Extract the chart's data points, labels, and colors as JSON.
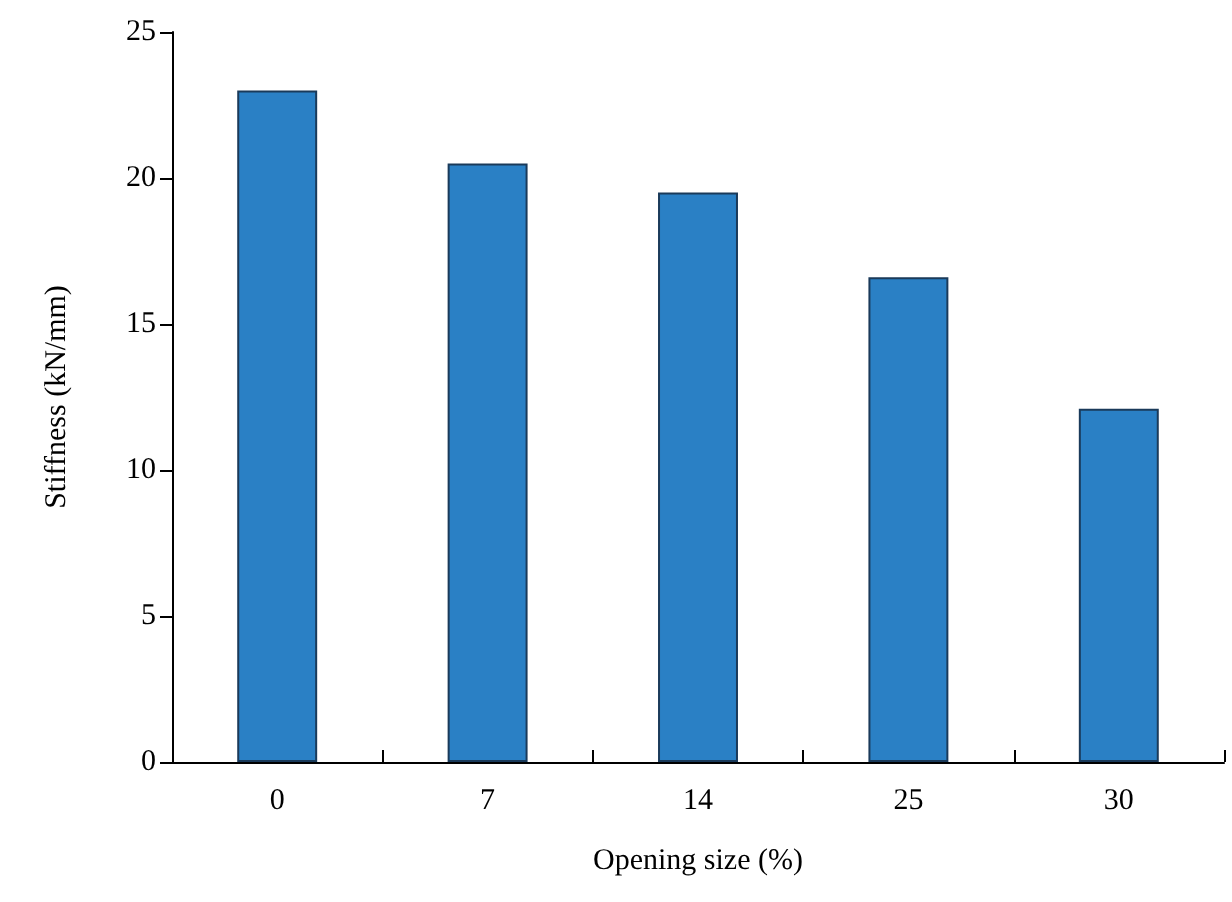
{
  "chart_data": {
    "type": "bar",
    "xlabel": "Opening size (%)",
    "ylabel": "Stiffness (kN/mm)",
    "categories": [
      "0",
      "7",
      "14",
      "25",
      "30"
    ],
    "values": [
      23.0,
      20.5,
      19.5,
      16.6,
      12.1
    ],
    "color": "#2a80c5",
    "ylim": [
      0,
      25
    ],
    "yticks": [
      0,
      5,
      10,
      15,
      20,
      25
    ]
  }
}
